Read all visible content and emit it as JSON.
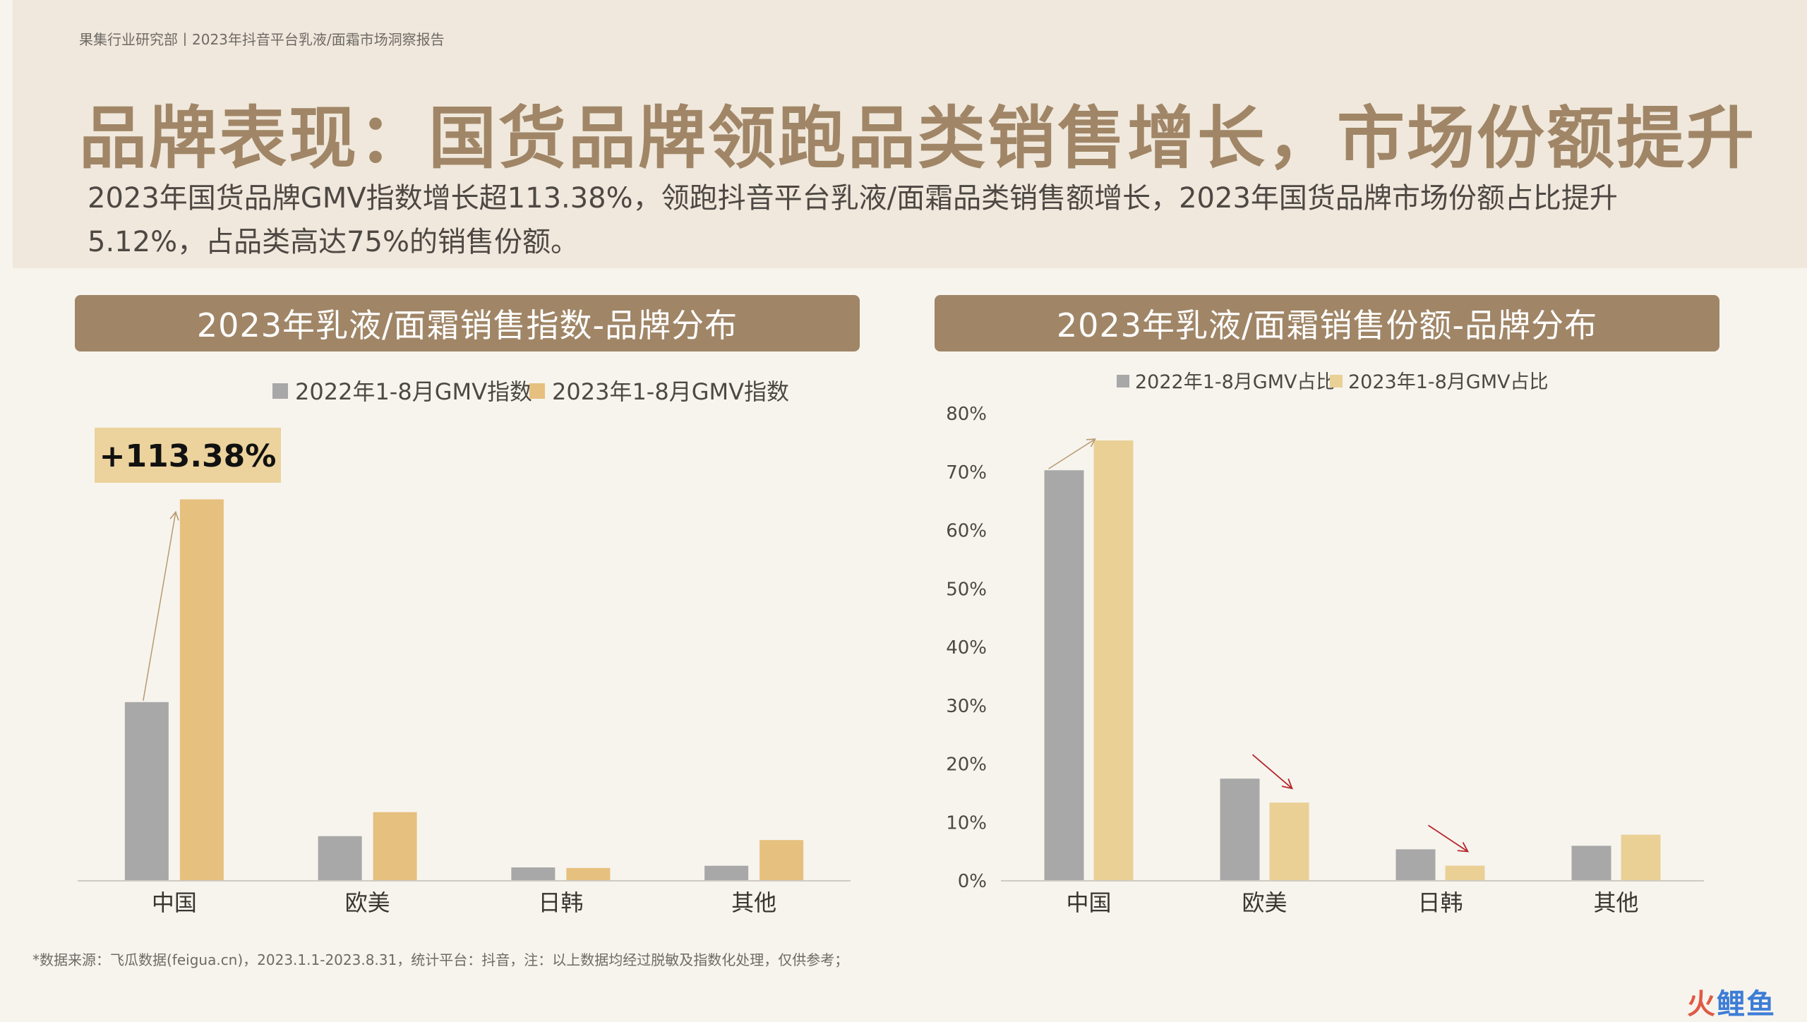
{
  "header": {
    "breadcrumb": "果集行业研究部丨2023年抖音平台乳液/面霜市场洞察报告",
    "title": "品牌表现：国货品牌领跑品类销售增长，市场份额提升",
    "subtitle": "2023年国货品牌GMV指数增长超113.38%，领跑抖音平台乳液/面霜品类销售额增长，2023年国货品牌市场份额占比提升5.12%，占品类高达75%的销售份额。"
  },
  "colors": {
    "accent": "#a08667",
    "series_2022": "#a8a8a8",
    "series_2023_left": "#e6c07e",
    "series_2023_right": "#ead095",
    "arrow_up": "#b89a6f",
    "arrow_down": "#b5272d"
  },
  "chart_data": [
    {
      "type": "bar",
      "title": "2023年乳液/面霜销售指数-品牌分布",
      "categories": [
        "中国",
        "欧美",
        "日韩",
        "其他"
      ],
      "series": [
        {
          "name": "2022年1-8月GMV指数",
          "values": [
            32,
            8,
            2.4,
            2.7
          ]
        },
        {
          "name": "2023年1-8月GMV指数",
          "values": [
            68.3,
            12.3,
            2.3,
            7.3
          ]
        }
      ],
      "annotation": "+113.38%",
      "ylim": [
        0,
        70
      ],
      "yaxis_visible": false,
      "legend": "top"
    },
    {
      "type": "bar",
      "title": "2023年乳液/面霜销售份额-品牌分布",
      "categories": [
        "中国",
        "欧美",
        "日韩",
        "其他"
      ],
      "series": [
        {
          "name": "2022年1-8月GMV占比",
          "values": [
            70.3,
            17.5,
            5.4,
            6.0
          ]
        },
        {
          "name": "2023年1-8月GMV占比",
          "values": [
            75.4,
            13.4,
            2.6,
            7.9
          ]
        }
      ],
      "yticks": [
        "0%",
        "10%",
        "20%",
        "30%",
        "40%",
        "50%",
        "60%",
        "70%",
        "80%"
      ],
      "ylim": [
        0,
        80
      ],
      "legend": "top"
    }
  ],
  "footnote": "*数据来源：飞瓜数据(feigua.cn)，2023.1.1-2023.8.31，统计平台：抖音，注：以上数据均经过脱敏及指数化处理，仅供参考；",
  "watermark": {
    "part1": "火",
    "part2": "鲤鱼"
  }
}
